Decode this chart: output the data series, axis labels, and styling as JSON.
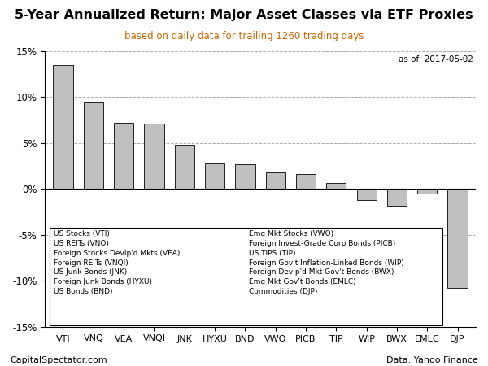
{
  "title": "5-Year Annualized Return: Major Asset Classes via ETF Proxies",
  "subtitle": "based on daily data for trailing 1260 trading days",
  "as_of": "as of  2017-05-02",
  "categories": [
    "VTI",
    "VNQ",
    "VEA",
    "VNQI",
    "JNK",
    "HYXU",
    "BND",
    "VWO",
    "PICB",
    "TIP",
    "WIP",
    "BWX",
    "EMLC",
    "DJP"
  ],
  "values": [
    13.5,
    9.4,
    7.2,
    7.1,
    4.8,
    2.8,
    2.7,
    1.8,
    1.6,
    0.6,
    -1.2,
    -1.8,
    -0.5,
    -10.8
  ],
  "bar_color": "#c0c0c0",
  "bar_edge_color": "#000000",
  "ylim": [
    -15,
    15
  ],
  "yticks": [
    -15,
    -10,
    -5,
    0,
    5,
    10,
    15
  ],
  "ytick_labels": [
    "-15%",
    "-10%",
    "-5%",
    "0%",
    "5%",
    "10%",
    "15%"
  ],
  "grid_color": "#aaaaaa",
  "background_color": "#ffffff",
  "footer_left": "CapitalSpectator.com",
  "footer_right": "Data: Yahoo Finance",
  "legend_left": [
    "US Stocks (VTI)",
    "US REITs (VNQ)",
    "Foreign Stocks Devlp'd Mkts (VEA)",
    "Foreign REITs (VNQI)",
    "US Junk Bonds (JNK)",
    "Foreign Junk Bonds (HYXU)",
    "US Bonds (BND)"
  ],
  "legend_right": [
    "Emg Mkt Stocks (VWO)",
    "Foreign Invest-Grade Corp Bonds (PICB)",
    "US TIPS (TIP)",
    "Foreign Gov't Inflation-Linked Bonds (WIP)",
    "Foreign Devlp'd Mkt Gov't Bonds (BWX)",
    "Emg Mkt Gov't Bonds (EMLC)",
    "Commodities (DJP)"
  ],
  "subtitle_color": "#cc6600",
  "legend_fontsize": 6.5,
  "title_fontsize": 11.5,
  "subtitle_fontsize": 8.5,
  "footer_fontsize": 8.0
}
